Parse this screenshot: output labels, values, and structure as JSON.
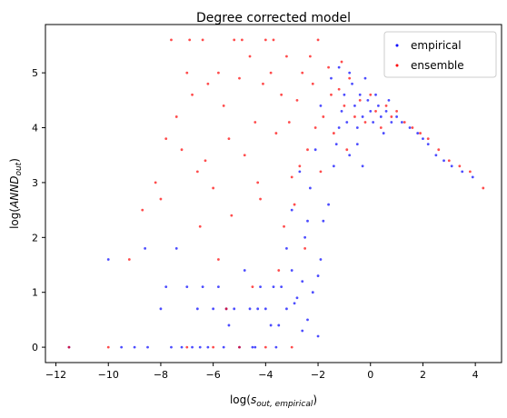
{
  "chart_data": {
    "type": "scatter",
    "title": "Degree corrected model",
    "xlabel": {
      "prefix": "log(",
      "base": "s",
      "sub": "out, empirical",
      "suffix": ")"
    },
    "ylabel": {
      "prefix": "log(",
      "base": "ANND",
      "sub": "out",
      "suffix": ")"
    },
    "xlim": [
      -12.4,
      5.0
    ],
    "ylim": [
      -0.28,
      5.88
    ],
    "xticks": [
      -12,
      -10,
      -8,
      -6,
      -4,
      -2,
      0,
      2,
      4
    ],
    "yticks": [
      0,
      1,
      2,
      3,
      4,
      5
    ],
    "grid": false,
    "legend_position": "top-right",
    "series": [
      {
        "name": "empirical",
        "color": "#0000ff"
      },
      {
        "name": "ensemble",
        "color": "#ff0000"
      }
    ],
    "points": {
      "empirical": [
        [
          -11.5,
          0
        ],
        [
          -10.0,
          1.6
        ],
        [
          -9.5,
          0
        ],
        [
          -9.0,
          0
        ],
        [
          -8.6,
          1.8
        ],
        [
          -8.5,
          0
        ],
        [
          -8.0,
          0.7
        ],
        [
          -7.8,
          1.1
        ],
        [
          -7.6,
          0
        ],
        [
          -7.4,
          1.8
        ],
        [
          -7.2,
          0
        ],
        [
          -7.0,
          1.1
        ],
        [
          -6.8,
          0
        ],
        [
          -6.6,
          0.7
        ],
        [
          -6.4,
          1.1
        ],
        [
          -6.2,
          0
        ],
        [
          -6.0,
          0.7
        ],
        [
          -5.8,
          1.1
        ],
        [
          -5.6,
          0
        ],
        [
          -5.4,
          0.4
        ],
        [
          -5.2,
          0.7
        ],
        [
          -5.0,
          0
        ],
        [
          -4.8,
          1.4
        ],
        [
          -4.6,
          0.7
        ],
        [
          -4.4,
          0
        ],
        [
          -4.2,
          1.1
        ],
        [
          -4.0,
          0.7
        ],
        [
          -3.8,
          0.4
        ],
        [
          -3.6,
          0
        ],
        [
          -3.4,
          1.1
        ],
        [
          -3.2,
          0.7
        ],
        [
          -3.0,
          1.4
        ],
        [
          -2.8,
          0.9
        ],
        [
          -2.6,
          1.2
        ],
        [
          -2.4,
          0.5
        ],
        [
          -2.2,
          1.0
        ],
        [
          -2.0,
          0.2
        ],
        [
          -1.9,
          1.6
        ],
        [
          -1.8,
          2.3
        ],
        [
          -1.6,
          2.6
        ],
        [
          -1.4,
          3.3
        ],
        [
          -1.3,
          3.7
        ],
        [
          -1.2,
          4.0
        ],
        [
          -1.1,
          4.3
        ],
        [
          -1.0,
          4.6
        ],
        [
          -0.9,
          4.1
        ],
        [
          -0.8,
          3.5
        ],
        [
          -0.7,
          4.8
        ],
        [
          -0.6,
          4.4
        ],
        [
          -0.5,
          4.0
        ],
        [
          -0.4,
          4.6
        ],
        [
          -0.3,
          4.2
        ],
        [
          -0.2,
          4.9
        ],
        [
          -0.1,
          4.5
        ],
        [
          0.0,
          4.3
        ],
        [
          0.1,
          4.1
        ],
        [
          0.2,
          4.6
        ],
        [
          0.3,
          4.4
        ],
        [
          0.4,
          4.2
        ],
        [
          0.6,
          4.3
        ],
        [
          0.8,
          4.1
        ],
        [
          1.0,
          4.2
        ],
        [
          1.2,
          4.1
        ],
        [
          1.5,
          4.0
        ],
        [
          1.8,
          3.9
        ],
        [
          2.0,
          3.8
        ],
        [
          2.2,
          3.7
        ],
        [
          2.5,
          3.5
        ],
        [
          2.8,
          3.4
        ],
        [
          3.1,
          3.3
        ],
        [
          3.5,
          3.2
        ],
        [
          3.9,
          3.1
        ],
        [
          -2.5,
          2.0
        ],
        [
          -2.3,
          2.9
        ],
        [
          -2.1,
          3.6
        ],
        [
          -1.9,
          4.4
        ],
        [
          -2.7,
          3.2
        ],
        [
          -3.0,
          2.5
        ],
        [
          -3.2,
          1.8
        ],
        [
          -1.5,
          4.9
        ],
        [
          -1.2,
          5.1
        ],
        [
          -0.8,
          5.0
        ],
        [
          -0.5,
          3.7
        ],
        [
          -0.3,
          3.3
        ],
        [
          0.5,
          3.9
        ],
        [
          0.7,
          4.5
        ],
        [
          -2.0,
          1.3
        ],
        [
          -2.4,
          2.3
        ],
        [
          -4.5,
          0
        ],
        [
          -5.5,
          0.7
        ],
        [
          -6.5,
          0
        ],
        [
          -3.5,
          0.4
        ],
        [
          -2.9,
          0.8
        ],
        [
          -2.6,
          0.3
        ],
        [
          -3.7,
          1.1
        ],
        [
          -4.3,
          0.7
        ]
      ],
      "ensemble": [
        [
          -11.5,
          0
        ],
        [
          -10.0,
          0
        ],
        [
          -9.2,
          1.6
        ],
        [
          -8.7,
          2.5
        ],
        [
          -8.2,
          3.0
        ],
        [
          -8.0,
          2.7
        ],
        [
          -7.6,
          5.6
        ],
        [
          -7.4,
          4.2
        ],
        [
          -7.2,
          3.6
        ],
        [
          -7.0,
          5.0
        ],
        [
          -6.8,
          4.6
        ],
        [
          -6.6,
          3.2
        ],
        [
          -6.4,
          5.6
        ],
        [
          -6.2,
          4.8
        ],
        [
          -6.0,
          2.9
        ],
        [
          -5.8,
          5.0
        ],
        [
          -5.6,
          4.4
        ],
        [
          -5.4,
          3.8
        ],
        [
          -5.2,
          5.6
        ],
        [
          -5.0,
          4.9
        ],
        [
          -4.8,
          3.5
        ],
        [
          -4.6,
          5.3
        ],
        [
          -4.4,
          4.1
        ],
        [
          -4.2,
          2.7
        ],
        [
          -4.0,
          5.6
        ],
        [
          -3.8,
          5.0
        ],
        [
          -3.6,
          3.9
        ],
        [
          -3.4,
          4.6
        ],
        [
          -3.2,
          5.3
        ],
        [
          -3.0,
          3.1
        ],
        [
          -2.8,
          4.5
        ],
        [
          -2.6,
          5.0
        ],
        [
          -2.4,
          3.6
        ],
        [
          -2.2,
          4.8
        ],
        [
          -2.0,
          5.6
        ],
        [
          -1.8,
          4.2
        ],
        [
          -1.6,
          5.1
        ],
        [
          -1.4,
          3.9
        ],
        [
          -1.2,
          4.7
        ],
        [
          -1.0,
          4.4
        ],
        [
          -0.8,
          4.9
        ],
        [
          -0.6,
          4.2
        ],
        [
          -0.4,
          4.5
        ],
        [
          -0.2,
          4.1
        ],
        [
          0.0,
          4.6
        ],
        [
          0.2,
          4.3
        ],
        [
          0.4,
          4.0
        ],
        [
          0.6,
          4.4
        ],
        [
          0.8,
          4.2
        ],
        [
          1.0,
          4.3
        ],
        [
          1.3,
          4.1
        ],
        [
          1.6,
          4.0
        ],
        [
          1.9,
          3.9
        ],
        [
          2.2,
          3.8
        ],
        [
          2.6,
          3.6
        ],
        [
          3.0,
          3.4
        ],
        [
          3.4,
          3.3
        ],
        [
          3.8,
          3.2
        ],
        [
          4.3,
          2.9
        ],
        [
          -7.0,
          0
        ],
        [
          -6.0,
          0
        ],
        [
          -5.0,
          0
        ],
        [
          -4.0,
          0
        ],
        [
          -3.0,
          0
        ],
        [
          -5.5,
          0.7
        ],
        [
          -4.5,
          1.1
        ],
        [
          -3.5,
          1.4
        ],
        [
          -2.5,
          1.8
        ],
        [
          -6.5,
          2.2
        ],
        [
          -5.8,
          1.6
        ],
        [
          -7.8,
          3.8
        ],
        [
          -6.9,
          5.6
        ],
        [
          -3.3,
          2.2
        ],
        [
          -2.9,
          2.6
        ],
        [
          -2.7,
          3.3
        ],
        [
          -2.1,
          4.0
        ],
        [
          -1.9,
          3.2
        ],
        [
          -1.5,
          4.6
        ],
        [
          -1.1,
          5.2
        ],
        [
          -0.9,
          3.6
        ],
        [
          -4.9,
          5.6
        ],
        [
          -4.1,
          4.8
        ],
        [
          -3.7,
          5.6
        ],
        [
          -3.1,
          4.1
        ],
        [
          -2.3,
          5.3
        ],
        [
          -5.3,
          2.4
        ],
        [
          -6.3,
          3.4
        ],
        [
          -4.3,
          3.0
        ]
      ]
    }
  }
}
